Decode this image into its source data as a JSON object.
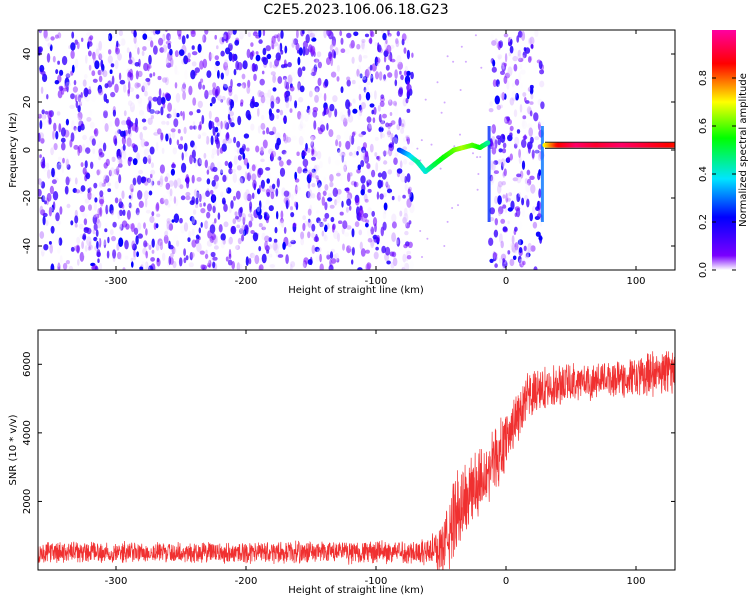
{
  "figure_title": "C2E5.2023.106.06.18.G23",
  "chart_data": [
    {
      "type": "heatmap",
      "xlabel": "Height of straight line (km)",
      "ylabel": "Frequency (Hz)",
      "xlim": [
        -360,
        130
      ],
      "ylim": [
        -50,
        50
      ],
      "xticks": [
        -300,
        -200,
        -100,
        0,
        100
      ],
      "yticks": [
        -40,
        -20,
        0,
        20,
        40
      ],
      "grid": false,
      "colorbar": {
        "label": "Normalized spectral amplitude",
        "range": [
          0.0,
          1.0
        ],
        "ticks": [
          0.0,
          0.2,
          0.4,
          0.6,
          0.8
        ],
        "colormap": "rainbow (white-purple-blue-cyan-green-yellow-red-magenta)",
        "stops": [
          "#ffffff",
          "#7a00ff",
          "#0000ff",
          "#00e5ff",
          "#00ff00",
          "#ffff00",
          "#ff0000",
          "#ff00a0"
        ]
      },
      "regions": [
        {
          "x_range": [
            -360,
            -72
          ],
          "amplitude": "low (0.0-0.2)",
          "pattern": "speckled noise"
        },
        {
          "x_range": [
            -72,
            -12
          ],
          "amplitude": "sparse",
          "pattern": "mostly empty"
        },
        {
          "x_range": [
            -12,
            28
          ],
          "amplitude": "low (0.0-0.2)",
          "pattern": "speckled noise band"
        },
        {
          "x_range": [
            28,
            130
          ],
          "amplitude": "near zero",
          "pattern": "empty"
        }
      ],
      "signal_track": [
        {
          "x": -82,
          "f": 0,
          "amp": 0.25
        },
        {
          "x": -75,
          "f": -2,
          "amp": 0.35
        },
        {
          "x": -68,
          "f": -5,
          "amp": 0.45
        },
        {
          "x": -62,
          "f": -9,
          "amp": 0.4
        },
        {
          "x": -55,
          "f": -6,
          "amp": 0.5
        },
        {
          "x": -48,
          "f": -3,
          "amp": 0.55
        },
        {
          "x": -40,
          "f": 0,
          "amp": 0.6
        },
        {
          "x": -33,
          "f": 1,
          "amp": 0.65
        },
        {
          "x": -26,
          "f": 2,
          "amp": 0.6
        },
        {
          "x": -20,
          "f": 1,
          "amp": 0.55
        },
        {
          "x": -14,
          "f": 3,
          "amp": 0.45
        },
        {
          "x": 30,
          "f": 2,
          "amp": 0.7
        },
        {
          "x": 40,
          "f": 2,
          "amp": 0.85
        },
        {
          "x": 55,
          "f": 2,
          "amp": 0.95
        },
        {
          "x": 70,
          "f": 2,
          "amp": 0.9
        },
        {
          "x": 90,
          "f": 2,
          "amp": 0.95
        },
        {
          "x": 110,
          "f": 2,
          "amp": 0.9
        },
        {
          "x": 130,
          "f": 2,
          "amp": 0.85
        }
      ]
    },
    {
      "type": "line",
      "xlabel": "Height of straight line (km)",
      "ylabel": "SNR (10 * v/v)",
      "xlim": [
        -360,
        130
      ],
      "ylim": [
        0,
        7000
      ],
      "xticks": [
        -300,
        -200,
        -100,
        0,
        100
      ],
      "yticks": [
        2000,
        4000,
        6000
      ],
      "grid": false,
      "color": "#f03030",
      "series": [
        {
          "x": [
            -360,
            -300,
            -250,
            -200,
            -150,
            -100,
            -80,
            -60,
            -50,
            -45,
            -40,
            -35,
            -30,
            -25,
            -20,
            -15,
            -10,
            -5,
            0,
            5,
            10,
            15,
            20,
            25,
            30,
            40,
            50,
            60,
            70,
            80,
            90,
            100,
            110,
            120,
            130
          ],
          "values": [
            500,
            510,
            510,
            500,
            520,
            520,
            530,
            540,
            600,
            900,
            1500,
            1900,
            2100,
            2400,
            2700,
            2900,
            3100,
            3400,
            3800,
            4200,
            4600,
            4900,
            5100,
            5200,
            5300,
            5400,
            5500,
            5500,
            5500,
            5600,
            5600,
            5600,
            5700,
            5800,
            5800
          ],
          "noise_amplitude": [
            350,
            350,
            350,
            350,
            360,
            380,
            380,
            450,
            800,
            1200,
            1400,
            1400,
            1300,
            1200,
            1200,
            1100,
            1100,
            1000,
            1000,
            950,
            900,
            850,
            800,
            750,
            700,
            650,
            650,
            600,
            600,
            600,
            650,
            650,
            700,
            750,
            750
          ]
        }
      ]
    }
  ]
}
